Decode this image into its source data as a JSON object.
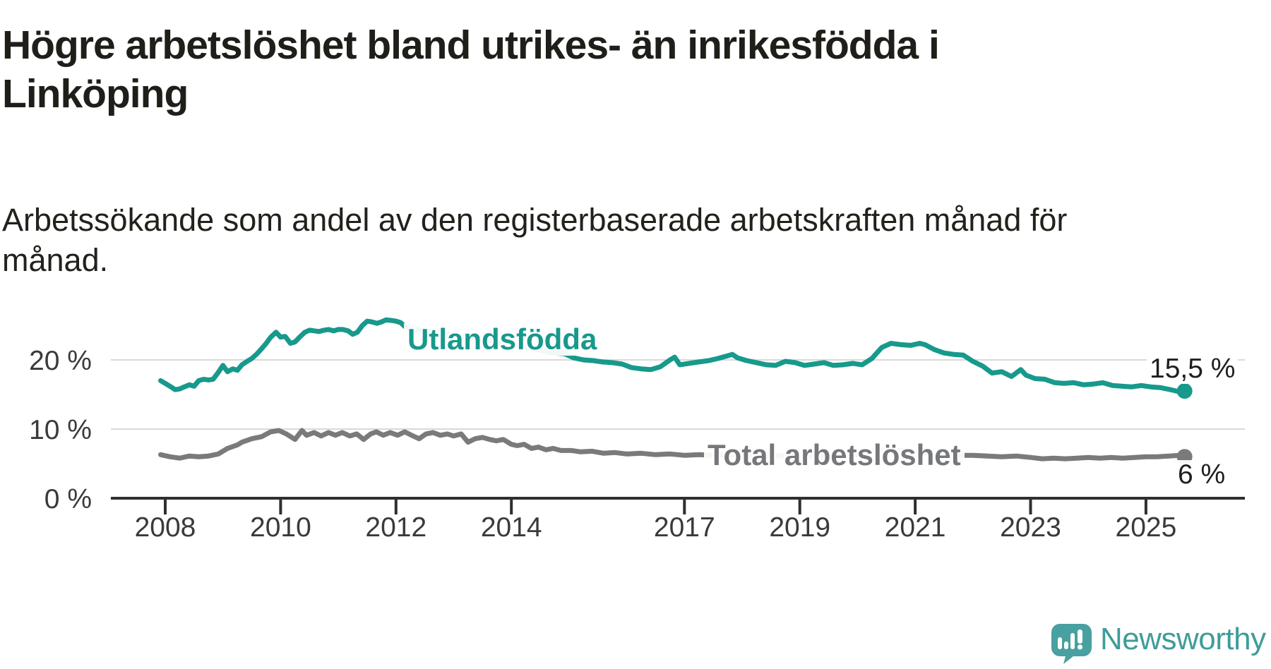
{
  "chart_data": {
    "type": "line",
    "title": "Högre arbetslöshet bland utrikes- än inrikesfödda i Linköping",
    "title_lines": [
      "Högre arbetslöshet bland utrikes- än inrikesfödda i",
      "Linköping"
    ],
    "subtitle": "Arbetssökande som andel av den registerbaserade arbetskraften månad för månad.",
    "subtitle_lines": [
      "Arbetssökande som andel av den registerbaserade arbetskraften månad för",
      "månad."
    ],
    "unit": "%",
    "grid": "horizontal",
    "legend": "inline-labels",
    "x_axis": {
      "tick_years": [
        2008,
        2010,
        2012,
        2014,
        2017,
        2019,
        2021,
        2023,
        2025
      ],
      "tick_labels": [
        "2008",
        "2010",
        "2012",
        "2014",
        "2017",
        "2019",
        "2021",
        "2023",
        "2025"
      ],
      "range_years": [
        2007.9,
        2025.7
      ]
    },
    "y_axis": {
      "ticks": [
        {
          "value": 0,
          "label": "0 %"
        },
        {
          "value": 10,
          "label": "10 %"
        },
        {
          "value": 20,
          "label": "20 %"
        }
      ],
      "range": [
        0,
        27
      ]
    },
    "series": [
      {
        "name": "Utlandsfödda",
        "color": "#17998c",
        "end_label": "15,5 %",
        "last_value": 15.5,
        "points": [
          [
            2007.92,
            17.0
          ],
          [
            2008.0,
            16.6
          ],
          [
            2008.08,
            16.2
          ],
          [
            2008.17,
            15.7
          ],
          [
            2008.25,
            15.8
          ],
          [
            2008.33,
            16.1
          ],
          [
            2008.42,
            16.4
          ],
          [
            2008.5,
            16.2
          ],
          [
            2008.58,
            17.0
          ],
          [
            2008.67,
            17.2
          ],
          [
            2008.75,
            17.1
          ],
          [
            2008.83,
            17.2
          ],
          [
            2008.92,
            18.2
          ],
          [
            2009.0,
            19.2
          ],
          [
            2009.08,
            18.3
          ],
          [
            2009.17,
            18.7
          ],
          [
            2009.25,
            18.5
          ],
          [
            2009.33,
            19.3
          ],
          [
            2009.42,
            19.8
          ],
          [
            2009.5,
            20.2
          ],
          [
            2009.58,
            20.8
          ],
          [
            2009.67,
            21.6
          ],
          [
            2009.75,
            22.4
          ],
          [
            2009.83,
            23.3
          ],
          [
            2009.92,
            24.0
          ],
          [
            2010.0,
            23.3
          ],
          [
            2010.08,
            23.4
          ],
          [
            2010.17,
            22.4
          ],
          [
            2010.25,
            22.6
          ],
          [
            2010.33,
            23.3
          ],
          [
            2010.42,
            24.0
          ],
          [
            2010.5,
            24.3
          ],
          [
            2010.58,
            24.2
          ],
          [
            2010.67,
            24.1
          ],
          [
            2010.75,
            24.3
          ],
          [
            2010.83,
            24.4
          ],
          [
            2010.92,
            24.2
          ],
          [
            2011.0,
            24.4
          ],
          [
            2011.08,
            24.4
          ],
          [
            2011.17,
            24.2
          ],
          [
            2011.25,
            23.7
          ],
          [
            2011.33,
            24.0
          ],
          [
            2011.42,
            25.0
          ],
          [
            2011.5,
            25.6
          ],
          [
            2011.58,
            25.5
          ],
          [
            2011.67,
            25.3
          ],
          [
            2011.75,
            25.5
          ],
          [
            2011.83,
            25.8
          ],
          [
            2011.92,
            25.7
          ],
          [
            2012.0,
            25.6
          ],
          [
            2012.08,
            25.4
          ],
          [
            2012.17,
            24.7
          ],
          [
            2012.25,
            24.5
          ],
          [
            2012.42,
            24.3
          ],
          [
            2012.58,
            24.1
          ],
          [
            2012.75,
            24.0
          ],
          [
            2013.0,
            23.6
          ],
          [
            2013.25,
            23.3
          ],
          [
            2013.5,
            23.0
          ],
          [
            2013.75,
            22.6
          ],
          [
            2014.0,
            22.2
          ],
          [
            2014.25,
            21.8
          ],
          [
            2014.5,
            21.4
          ],
          [
            2014.75,
            21.0
          ],
          [
            2014.92,
            20.9
          ],
          [
            2015.08,
            20.3
          ],
          [
            2015.25,
            20.0
          ],
          [
            2015.42,
            19.9
          ],
          [
            2015.58,
            19.7
          ],
          [
            2015.75,
            19.6
          ],
          [
            2015.92,
            19.4
          ],
          [
            2016.08,
            18.9
          ],
          [
            2016.25,
            18.7
          ],
          [
            2016.42,
            18.6
          ],
          [
            2016.58,
            19.0
          ],
          [
            2016.75,
            20.0
          ],
          [
            2016.83,
            20.4
          ],
          [
            2016.92,
            19.3
          ],
          [
            2017.08,
            19.5
          ],
          [
            2017.25,
            19.7
          ],
          [
            2017.42,
            19.9
          ],
          [
            2017.58,
            20.2
          ],
          [
            2017.75,
            20.6
          ],
          [
            2017.83,
            20.8
          ],
          [
            2017.92,
            20.3
          ],
          [
            2018.08,
            19.9
          ],
          [
            2018.25,
            19.6
          ],
          [
            2018.42,
            19.3
          ],
          [
            2018.58,
            19.2
          ],
          [
            2018.75,
            19.8
          ],
          [
            2018.92,
            19.6
          ],
          [
            2019.08,
            19.2
          ],
          [
            2019.25,
            19.4
          ],
          [
            2019.42,
            19.6
          ],
          [
            2019.58,
            19.2
          ],
          [
            2019.75,
            19.3
          ],
          [
            2019.92,
            19.5
          ],
          [
            2020.08,
            19.3
          ],
          [
            2020.25,
            20.2
          ],
          [
            2020.42,
            21.8
          ],
          [
            2020.58,
            22.4
          ],
          [
            2020.75,
            22.2
          ],
          [
            2020.92,
            22.1
          ],
          [
            2021.08,
            22.4
          ],
          [
            2021.17,
            22.2
          ],
          [
            2021.33,
            21.5
          ],
          [
            2021.5,
            21.0
          ],
          [
            2021.67,
            20.8
          ],
          [
            2021.83,
            20.7
          ],
          [
            2022.0,
            19.8
          ],
          [
            2022.17,
            19.1
          ],
          [
            2022.33,
            18.1
          ],
          [
            2022.5,
            18.3
          ],
          [
            2022.67,
            17.6
          ],
          [
            2022.83,
            18.6
          ],
          [
            2022.92,
            17.8
          ],
          [
            2023.08,
            17.3
          ],
          [
            2023.25,
            17.2
          ],
          [
            2023.42,
            16.7
          ],
          [
            2023.58,
            16.6
          ],
          [
            2023.75,
            16.7
          ],
          [
            2023.92,
            16.4
          ],
          [
            2024.08,
            16.5
          ],
          [
            2024.25,
            16.7
          ],
          [
            2024.42,
            16.3
          ],
          [
            2024.58,
            16.2
          ],
          [
            2024.75,
            16.1
          ],
          [
            2024.92,
            16.3
          ],
          [
            2025.08,
            16.1
          ],
          [
            2025.25,
            16.0
          ],
          [
            2025.42,
            15.7
          ],
          [
            2025.58,
            15.4
          ],
          [
            2025.67,
            15.5
          ]
        ]
      },
      {
        "name": "Total arbetslöshet",
        "color": "#7a7a7c",
        "end_label": "6 %",
        "last_value": 6.0,
        "points": [
          [
            2007.92,
            6.3
          ],
          [
            2008.08,
            6.0
          ],
          [
            2008.25,
            5.8
          ],
          [
            2008.42,
            6.1
          ],
          [
            2008.58,
            6.0
          ],
          [
            2008.75,
            6.1
          ],
          [
            2008.92,
            6.4
          ],
          [
            2009.08,
            7.2
          ],
          [
            2009.25,
            7.7
          ],
          [
            2009.33,
            8.1
          ],
          [
            2009.5,
            8.6
          ],
          [
            2009.67,
            8.9
          ],
          [
            2009.83,
            9.6
          ],
          [
            2009.97,
            9.8
          ],
          [
            2010.1,
            9.3
          ],
          [
            2010.25,
            8.5
          ],
          [
            2010.37,
            9.8
          ],
          [
            2010.45,
            9.1
          ],
          [
            2010.58,
            9.5
          ],
          [
            2010.7,
            9.0
          ],
          [
            2010.83,
            9.5
          ],
          [
            2010.95,
            9.1
          ],
          [
            2011.07,
            9.5
          ],
          [
            2011.2,
            9.0
          ],
          [
            2011.32,
            9.3
          ],
          [
            2011.44,
            8.5
          ],
          [
            2011.56,
            9.3
          ],
          [
            2011.66,
            9.6
          ],
          [
            2011.78,
            9.1
          ],
          [
            2011.9,
            9.5
          ],
          [
            2012.03,
            9.1
          ],
          [
            2012.15,
            9.6
          ],
          [
            2012.27,
            9.1
          ],
          [
            2012.4,
            8.6
          ],
          [
            2012.52,
            9.3
          ],
          [
            2012.64,
            9.5
          ],
          [
            2012.77,
            9.1
          ],
          [
            2012.89,
            9.3
          ],
          [
            2013.0,
            9.0
          ],
          [
            2013.13,
            9.3
          ],
          [
            2013.25,
            8.1
          ],
          [
            2013.37,
            8.6
          ],
          [
            2013.5,
            8.8
          ],
          [
            2013.62,
            8.5
          ],
          [
            2013.74,
            8.3
          ],
          [
            2013.86,
            8.5
          ],
          [
            2014.0,
            7.8
          ],
          [
            2014.1,
            7.6
          ],
          [
            2014.22,
            7.8
          ],
          [
            2014.35,
            7.2
          ],
          [
            2014.47,
            7.4
          ],
          [
            2014.6,
            7.0
          ],
          [
            2014.72,
            7.2
          ],
          [
            2014.86,
            6.9
          ],
          [
            2015.05,
            6.9
          ],
          [
            2015.2,
            6.7
          ],
          [
            2015.4,
            6.8
          ],
          [
            2015.6,
            6.5
          ],
          [
            2015.8,
            6.6
          ],
          [
            2016.0,
            6.4
          ],
          [
            2016.25,
            6.5
          ],
          [
            2016.5,
            6.3
          ],
          [
            2016.75,
            6.4
          ],
          [
            2017.0,
            6.2
          ],
          [
            2017.25,
            6.3
          ],
          [
            2017.5,
            6.2
          ],
          [
            2017.75,
            6.3
          ],
          [
            2018.0,
            6.2
          ],
          [
            2018.33,
            6.3
          ],
          [
            2018.67,
            6.1
          ],
          [
            2019.0,
            6.2
          ],
          [
            2019.33,
            6.0
          ],
          [
            2019.67,
            6.1
          ],
          [
            2020.0,
            6.3
          ],
          [
            2020.25,
            6.8
          ],
          [
            2020.5,
            7.0
          ],
          [
            2020.75,
            6.9
          ],
          [
            2021.0,
            6.7
          ],
          [
            2021.33,
            6.4
          ],
          [
            2021.67,
            6.2
          ],
          [
            2022.0,
            6.2
          ],
          [
            2022.25,
            6.1
          ],
          [
            2022.5,
            6.0
          ],
          [
            2022.75,
            6.1
          ],
          [
            2023.0,
            5.9
          ],
          [
            2023.2,
            5.7
          ],
          [
            2023.4,
            5.8
          ],
          [
            2023.6,
            5.7
          ],
          [
            2023.8,
            5.8
          ],
          [
            2024.0,
            5.9
          ],
          [
            2024.2,
            5.8
          ],
          [
            2024.4,
            5.9
          ],
          [
            2024.6,
            5.8
          ],
          [
            2024.8,
            5.9
          ],
          [
            2025.0,
            6.0
          ],
          [
            2025.2,
            6.0
          ],
          [
            2025.4,
            6.1
          ],
          [
            2025.58,
            6.2
          ],
          [
            2025.67,
            6.0
          ]
        ]
      }
    ]
  },
  "footer": {
    "brand": "Newsworthy"
  },
  "colors": {
    "accent_teal": "#17998c",
    "series_gray": "#7a7a7c",
    "grid": "#d9d9d9",
    "axis": "#2f2f2f",
    "tick_text": "#3a3a3a",
    "logo_teal": "#49a0a0",
    "logo_text": "#3f9c9a"
  }
}
